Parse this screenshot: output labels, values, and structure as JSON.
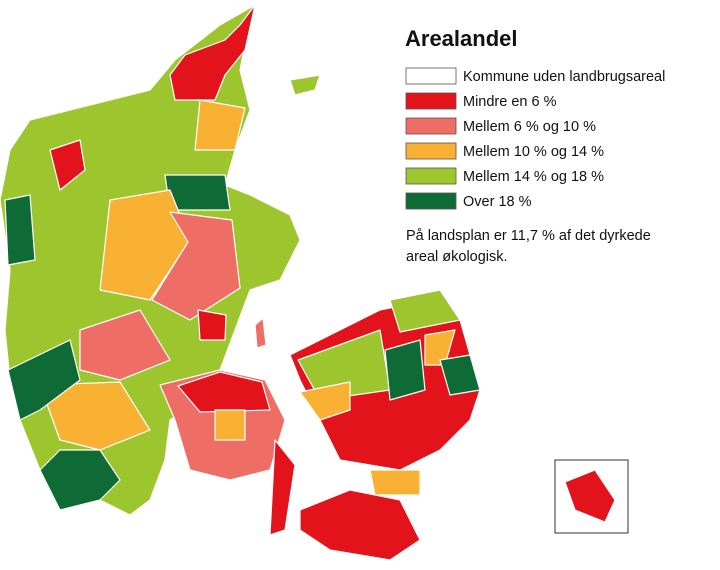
{
  "legend": {
    "title": "Arealandel",
    "items": [
      {
        "label": "Kommune uden landbrugsareal",
        "color": "#ffffff"
      },
      {
        "label": "Mindre en 6 %",
        "color": "#e3131b"
      },
      {
        "label": "Mellem 6 % og 10 %",
        "color": "#ee6d64"
      },
      {
        "label": "Mellem 10 % og 14 %",
        "color": "#f8b133"
      },
      {
        "label": "Mellem 14 % og 18 %",
        "color": "#9dc52e"
      },
      {
        "label": "Over 18 %",
        "color": "#0f6b36"
      }
    ]
  },
  "note": "På landsplan er 11,7 % af det dyrkede areal økologisk."
}
